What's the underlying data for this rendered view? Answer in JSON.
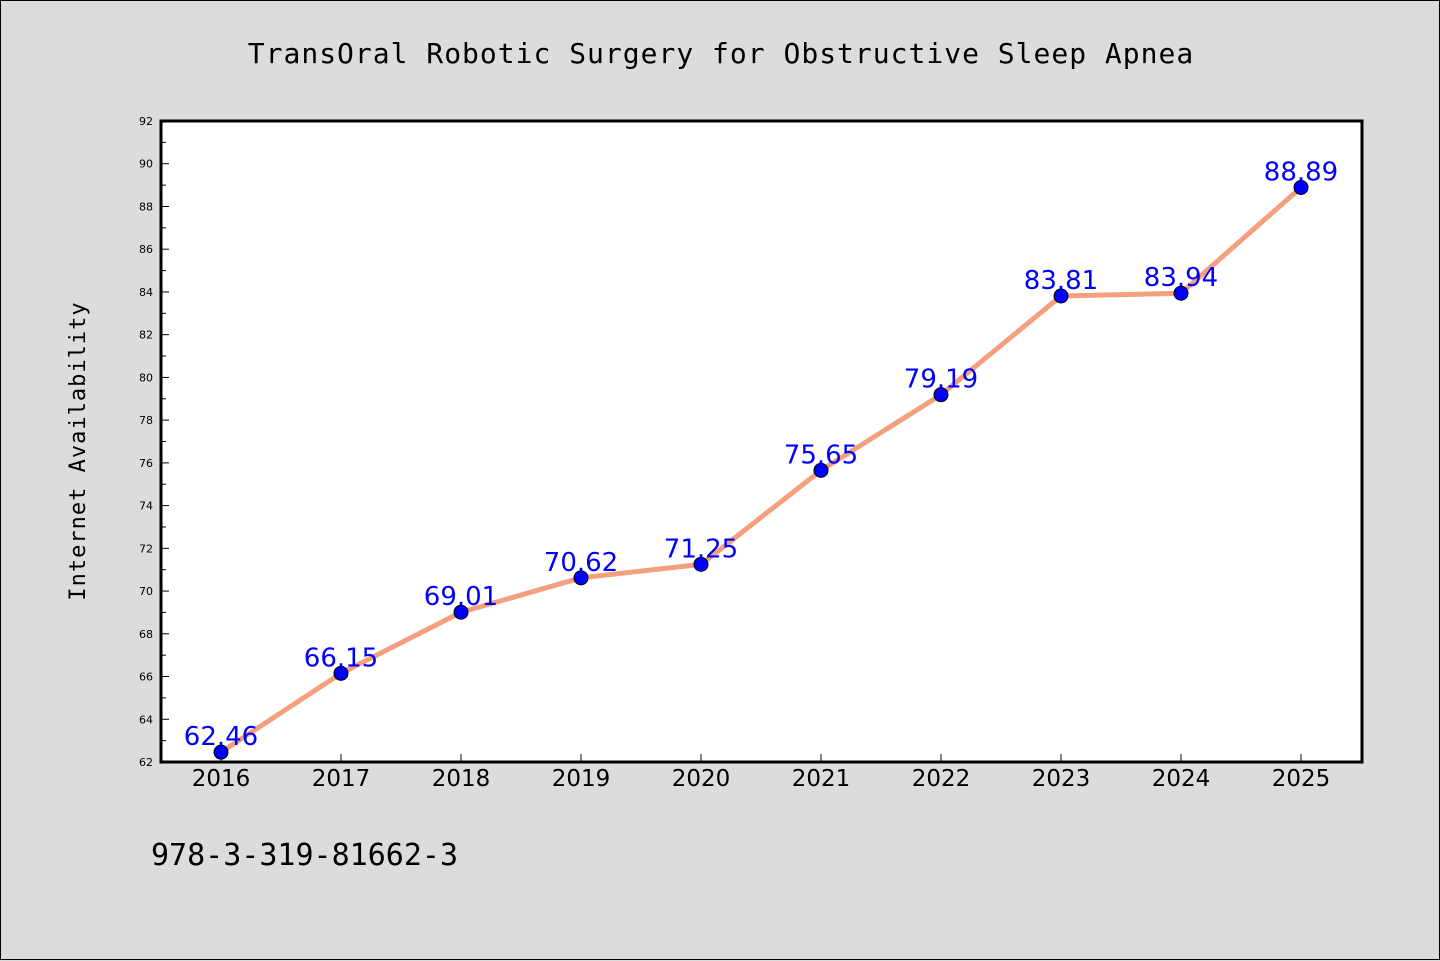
{
  "chart_data": {
    "type": "line",
    "title": "TransOral Robotic Surgery for Obstructive Sleep Apnea",
    "xlabel": "",
    "ylabel": "Internet Availability",
    "categories": [
      "2016",
      "2017",
      "2018",
      "2019",
      "2020",
      "2021",
      "2022",
      "2023",
      "2024",
      "2025"
    ],
    "values": [
      62.46,
      66.15,
      69.01,
      70.62,
      71.25,
      75.65,
      79.19,
      83.81,
      83.94,
      88.89
    ],
    "data_labels": [
      "62.46",
      "66.15",
      "69.01",
      "70.62",
      "71.25",
      "75.65",
      "79.19",
      "83.81",
      "83.94",
      "88.89"
    ],
    "ylim": [
      62,
      92
    ],
    "yticks": [
      "62",
      "64",
      "66",
      "68",
      "70",
      "72",
      "74",
      "76",
      "78",
      "80",
      "82",
      "84",
      "86",
      "88",
      "90",
      "92"
    ],
    "grid": false,
    "legend": "none",
    "colors": {
      "line": "#f4a07e",
      "marker": "#0000ff",
      "data_label": "#0000ff",
      "plot_background": "#ffffff",
      "page_background": "#dcdcdc"
    }
  },
  "footer_text": "978-3-319-81662-3"
}
